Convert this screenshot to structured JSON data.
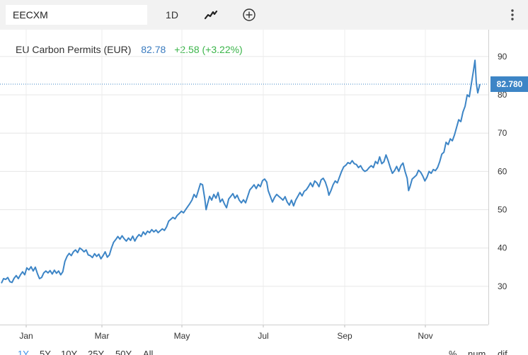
{
  "toolbar": {
    "symbol": "EECXM",
    "period": "1D",
    "chart_type_icon": "line-chart-icon",
    "add_icon": "plus-circle-icon",
    "more_icon": "vertical-ellipsis-icon"
  },
  "legend": {
    "name": "EU Carbon Permits (EUR)",
    "price": "82.78",
    "change": "+2.58 (+3.22%)"
  },
  "price_label": "82.780",
  "range_buttons": [
    "1Y",
    "5Y",
    "10Y",
    "25Y",
    "50Y",
    "All"
  ],
  "active_range": "1Y",
  "scale_buttons": [
    "%",
    "num",
    "dif"
  ],
  "colors": {
    "line": "#3d85c6",
    "price_label_bg": "#3d85c6",
    "change": "#3bb54a",
    "active_range": "#3a8ee6"
  },
  "chart_data": {
    "type": "line",
    "title": "EU Carbon Permits (EUR)",
    "xlabel": "",
    "ylabel": "",
    "x_ticks": [
      "Jan",
      "Mar",
      "May",
      "Jul",
      "Sep",
      "Nov"
    ],
    "y_ticks": [
      30,
      40,
      50,
      60,
      70,
      80,
      90
    ],
    "ylim": [
      20,
      97
    ],
    "grid": true,
    "last_value": 82.78,
    "series": [
      {
        "name": "EU Carbon Permits (EUR)",
        "points": [
          [
            0,
            30.8
          ],
          [
            3,
            32.0
          ],
          [
            6,
            31.8
          ],
          [
            9,
            32.3
          ],
          [
            12,
            31.2
          ],
          [
            15,
            31.0
          ],
          [
            18,
            32.1
          ],
          [
            21,
            32.8
          ],
          [
            24,
            32.0
          ],
          [
            27,
            33.0
          ],
          [
            30,
            33.8
          ],
          [
            33,
            33.0
          ],
          [
            36,
            34.8
          ],
          [
            39,
            34.3
          ],
          [
            42,
            35.1
          ],
          [
            45,
            34.0
          ],
          [
            48,
            35.0
          ],
          [
            51,
            33.3
          ],
          [
            54,
            32.0
          ],
          [
            57,
            32.3
          ],
          [
            60,
            33.5
          ],
          [
            63,
            34.0
          ],
          [
            66,
            33.5
          ],
          [
            69,
            34.1
          ],
          [
            72,
            33.2
          ],
          [
            75,
            34.2
          ],
          [
            78,
            33.4
          ],
          [
            81,
            34.0
          ],
          [
            84,
            33.0
          ],
          [
            87,
            33.8
          ],
          [
            90,
            36.5
          ],
          [
            93,
            37.8
          ],
          [
            96,
            38.6
          ],
          [
            99,
            38.0
          ],
          [
            102,
            39.0
          ],
          [
            105,
            39.5
          ],
          [
            108,
            38.8
          ],
          [
            111,
            40.0
          ],
          [
            114,
            39.6
          ],
          [
            117,
            39.0
          ],
          [
            120,
            39.5
          ],
          [
            123,
            38.2
          ],
          [
            126,
            38.0
          ],
          [
            129,
            37.5
          ],
          [
            132,
            38.5
          ],
          [
            135,
            37.8
          ],
          [
            138,
            38.4
          ],
          [
            141,
            37.2
          ],
          [
            144,
            38.0
          ],
          [
            147,
            39.0
          ],
          [
            150,
            37.6
          ],
          [
            153,
            38.2
          ],
          [
            156,
            40.0
          ],
          [
            159,
            41.5
          ],
          [
            162,
            42.2
          ],
          [
            165,
            43.0
          ],
          [
            168,
            42.3
          ],
          [
            171,
            43.2
          ],
          [
            174,
            42.4
          ],
          [
            177,
            41.8
          ],
          [
            180,
            42.6
          ],
          [
            183,
            42.0
          ],
          [
            186,
            43.1
          ],
          [
            189,
            41.8
          ],
          [
            192,
            42.8
          ],
          [
            195,
            43.5
          ],
          [
            198,
            43.0
          ],
          [
            201,
            44.2
          ],
          [
            204,
            43.5
          ],
          [
            207,
            44.4
          ],
          [
            210,
            44.0
          ],
          [
            213,
            44.8
          ],
          [
            216,
            44.2
          ],
          [
            219,
            44.7
          ],
          [
            222,
            44.0
          ],
          [
            225,
            44.5
          ],
          [
            228,
            45.0
          ],
          [
            231,
            44.6
          ],
          [
            234,
            45.5
          ],
          [
            237,
            47.0
          ],
          [
            240,
            47.5
          ],
          [
            243,
            48.0
          ],
          [
            246,
            47.6
          ],
          [
            249,
            48.5
          ],
          [
            252,
            49.0
          ],
          [
            255,
            49.6
          ],
          [
            258,
            49.2
          ],
          [
            261,
            50.0
          ],
          [
            264,
            50.8
          ],
          [
            267,
            51.6
          ],
          [
            270,
            52.5
          ],
          [
            273,
            54.0
          ],
          [
            276,
            53.2
          ],
          [
            279,
            55.0
          ],
          [
            282,
            56.8
          ],
          [
            285,
            56.5
          ],
          [
            288,
            53.0
          ],
          [
            290,
            50.0
          ],
          [
            292,
            51.5
          ],
          [
            295,
            53.5
          ],
          [
            298,
            52.5
          ],
          [
            301,
            54.0
          ],
          [
            304,
            53.0
          ],
          [
            307,
            54.5
          ],
          [
            310,
            52.0
          ],
          [
            313,
            52.8
          ],
          [
            316,
            51.5
          ],
          [
            319,
            50.5
          ],
          [
            322,
            52.8
          ],
          [
            325,
            53.5
          ],
          [
            328,
            54.2
          ],
          [
            331,
            53.0
          ],
          [
            334,
            53.8
          ],
          [
            337,
            52.5
          ],
          [
            340,
            51.8
          ],
          [
            343,
            52.6
          ],
          [
            346,
            51.8
          ],
          [
            349,
            53.5
          ],
          [
            352,
            55.2
          ],
          [
            355,
            55.8
          ],
          [
            358,
            56.5
          ],
          [
            361,
            55.5
          ],
          [
            364,
            56.6
          ],
          [
            367,
            56.0
          ],
          [
            370,
            57.6
          ],
          [
            373,
            58.0
          ],
          [
            376,
            57.2
          ],
          [
            378,
            55.0
          ],
          [
            381,
            53.5
          ],
          [
            384,
            52.0
          ],
          [
            387,
            53.2
          ],
          [
            390,
            54.0
          ],
          [
            393,
            53.5
          ],
          [
            396,
            53.0
          ],
          [
            399,
            52.5
          ],
          [
            402,
            53.4
          ],
          [
            405,
            52.0
          ],
          [
            408,
            51.2
          ],
          [
            411,
            52.5
          ],
          [
            414,
            51.0
          ],
          [
            417,
            52.5
          ],
          [
            420,
            53.5
          ],
          [
            423,
            54.5
          ],
          [
            426,
            53.6
          ],
          [
            429,
            54.8
          ],
          [
            432,
            55.2
          ],
          [
            435,
            56.0
          ],
          [
            438,
            57.0
          ],
          [
            441,
            56.0
          ],
          [
            444,
            57.5
          ],
          [
            447,
            57.0
          ],
          [
            450,
            56.0
          ],
          [
            453,
            57.8
          ],
          [
            456,
            58.2
          ],
          [
            459,
            57.2
          ],
          [
            462,
            55.5
          ],
          [
            464,
            53.8
          ],
          [
            467,
            55.0
          ],
          [
            470,
            56.5
          ],
          [
            473,
            57.5
          ],
          [
            476,
            57.0
          ],
          [
            479,
            58.5
          ],
          [
            482,
            60.0
          ],
          [
            485,
            61.2
          ],
          [
            488,
            61.6
          ],
          [
            491,
            62.3
          ],
          [
            494,
            62.0
          ],
          [
            497,
            62.8
          ],
          [
            500,
            62.0
          ],
          [
            503,
            61.8
          ],
          [
            506,
            61.0
          ],
          [
            509,
            61.5
          ],
          [
            512,
            60.5
          ],
          [
            515,
            60.0
          ],
          [
            518,
            60.3
          ],
          [
            521,
            61.0
          ],
          [
            524,
            61.5
          ],
          [
            527,
            61.0
          ],
          [
            530,
            62.6
          ],
          [
            533,
            62.0
          ],
          [
            536,
            63.8
          ],
          [
            539,
            62.0
          ],
          [
            542,
            62.5
          ],
          [
            545,
            64.3
          ],
          [
            548,
            62.8
          ],
          [
            551,
            61.0
          ],
          [
            554,
            59.5
          ],
          [
            557,
            60.2
          ],
          [
            560,
            61.3
          ],
          [
            563,
            60.0
          ],
          [
            566,
            61.5
          ],
          [
            569,
            62.2
          ],
          [
            572,
            60.0
          ],
          [
            575,
            58.2
          ],
          [
            577,
            55.0
          ],
          [
            579,
            56.0
          ],
          [
            582,
            58.0
          ],
          [
            585,
            58.5
          ],
          [
            588,
            59.0
          ],
          [
            591,
            60.3
          ],
          [
            594,
            59.8
          ],
          [
            597,
            58.8
          ],
          [
            600,
            57.5
          ],
          [
            603,
            58.5
          ],
          [
            606,
            60.0
          ],
          [
            609,
            59.5
          ],
          [
            612,
            60.5
          ],
          [
            615,
            60.2
          ],
          [
            618,
            61.0
          ],
          [
            621,
            62.5
          ],
          [
            624,
            64.5
          ],
          [
            627,
            65.0
          ],
          [
            630,
            67.6
          ],
          [
            633,
            67.0
          ],
          [
            636,
            68.5
          ],
          [
            639,
            68.0
          ],
          [
            642,
            69.5
          ],
          [
            645,
            71.5
          ],
          [
            648,
            73.5
          ],
          [
            651,
            73.0
          ],
          [
            654,
            75.5
          ],
          [
            657,
            77.0
          ],
          [
            660,
            80.0
          ],
          [
            663,
            79.5
          ],
          [
            666,
            83.0
          ],
          [
            669,
            86.5
          ],
          [
            671,
            89.0
          ],
          [
            673,
            83.0
          ],
          [
            675,
            80.5
          ],
          [
            678,
            82.78
          ]
        ]
      }
    ]
  }
}
